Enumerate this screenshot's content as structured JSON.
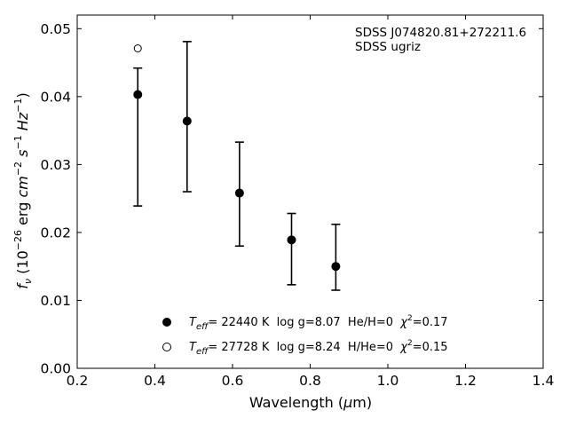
{
  "chart_data": {
    "type": "scatter",
    "xlabel": "Wavelength (μm)",
    "ylabel": "f_ν (10^-26 erg cm^-2 s^-1 Hz^-1)",
    "xlim": [
      0.2,
      1.4
    ],
    "ylim": [
      0.0,
      0.052
    ],
    "xticks": [
      0.2,
      0.4,
      0.6,
      0.8,
      1.0,
      1.2,
      1.4
    ],
    "xtick_labels": [
      "0.2",
      "0.4",
      "0.6",
      "0.8",
      "1.0",
      "1.2",
      "1.4"
    ],
    "yticks": [
      0.0,
      0.01,
      0.02,
      0.03,
      0.04,
      0.05
    ],
    "ytick_labels": [
      "0.00",
      "0.01",
      "0.02",
      "0.03",
      "0.04",
      "0.05"
    ],
    "grid": false,
    "annotation": {
      "line1": "SDSS J074820.81+272211.6",
      "line2": "SDSS ugriz",
      "placement": "top-right"
    },
    "observed": {
      "x": [
        0.356,
        0.483,
        0.618,
        0.752,
        0.866
      ],
      "y": [
        0.0403,
        0.0364,
        0.0258,
        0.0189,
        0.015
      ],
      "yerr_upper": [
        0.0442,
        0.0481,
        0.0333,
        0.0228,
        0.0212
      ],
      "yerr_lower": [
        0.0239,
        0.026,
        0.018,
        0.0123,
        0.0115
      ]
    },
    "series": [
      {
        "name": "Teff= 22440 K  log g=8.07  He/H=0  χ2=0.17",
        "marker": "filled-circle",
        "x": [
          0.356,
          0.483,
          0.618,
          0.752,
          0.866
        ],
        "y": [
          0.0403,
          0.0364,
          0.0258,
          0.0189,
          0.015
        ]
      },
      {
        "name": "Teff= 27728 K  log g=8.24  H/He=0  χ2=0.15",
        "marker": "open-circle",
        "x": [
          0.356
        ],
        "y": [
          0.0471
        ]
      }
    ],
    "legend": {
      "placement": "bottom-center",
      "entries": [
        {
          "prefix_main": "T",
          "prefix_sub": "eff",
          "text": "= 22440 K  log g=8.07  He/H=0  ",
          "chi": "χ",
          "chi_sup": "2",
          "chi_val": "=0.17"
        },
        {
          "prefix_main": "T",
          "prefix_sub": "eff",
          "text": "= 27728 K  log g=8.24  H/He=0  ",
          "chi": "χ",
          "chi_sup": "2",
          "chi_val": "=0.15"
        }
      ]
    },
    "colors": {
      "axes": "#000000",
      "markers": "#000000",
      "background": "#ffffff"
    }
  }
}
